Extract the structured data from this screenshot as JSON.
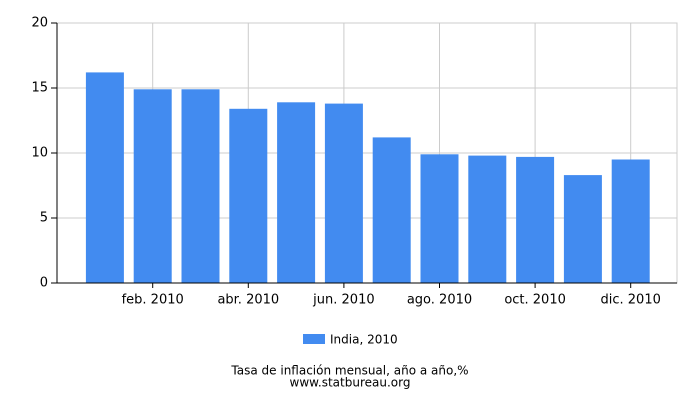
{
  "chart_data": {
    "type": "bar",
    "title": "Tasa de inflación mensual, año a año,%",
    "source": "www.statbureau.org",
    "categories": [
      null,
      "feb. 2010",
      null,
      "abr. 2010",
      null,
      "jun. 2010",
      null,
      "ago. 2010",
      null,
      "oct. 2010",
      null,
      "dic. 2010"
    ],
    "series": [
      {
        "name": "India, 2010",
        "color": "#428bf0",
        "values": [
          16.2,
          14.9,
          14.9,
          13.4,
          13.9,
          13.8,
          11.2,
          9.9,
          9.8,
          9.7,
          8.3,
          9.5
        ]
      }
    ],
    "ylim": [
      0,
      20
    ],
    "yticks": [
      0,
      5,
      10,
      15,
      20
    ],
    "grid": true
  }
}
